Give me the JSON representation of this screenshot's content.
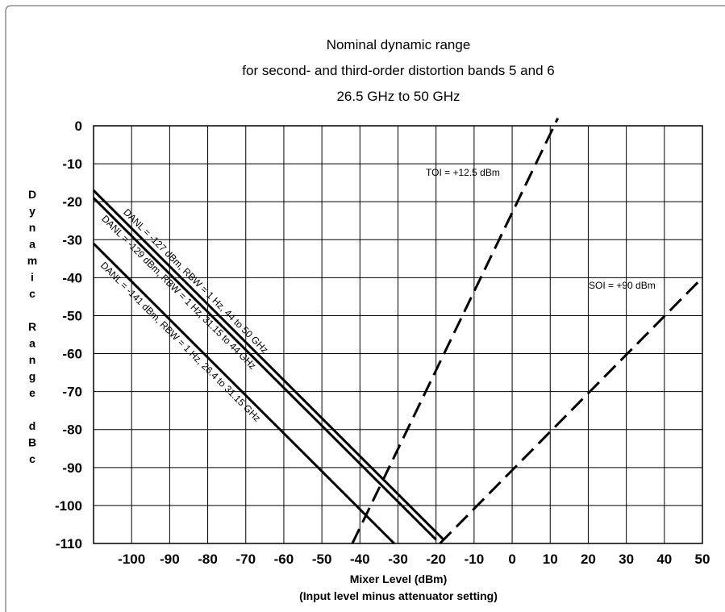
{
  "chart_data": {
    "type": "line",
    "title_lines": [
      "Nominal dynamic range",
      "for second- and third-order distortion bands 5 and 6",
      "26.5 GHz to 50 GHz"
    ],
    "xlabel": "Mixer Level (dBm)",
    "xlabel_sub": "(Input level minus attenuator setting)",
    "ylabel": "Dynamic Range dBc",
    "ylabel_chars": [
      "D",
      "y",
      "n",
      "a",
      "m",
      "i",
      "c",
      "",
      "R",
      "a",
      "n",
      "g",
      "e",
      "",
      "d",
      "B",
      "c"
    ],
    "xlim": [
      -110,
      50
    ],
    "ylim": [
      -110,
      0
    ],
    "x_ticks": [
      -100,
      -90,
      -80,
      -70,
      -60,
      -50,
      -40,
      -30,
      -20,
      -10,
      0,
      10,
      20,
      30,
      40,
      50
    ],
    "y_ticks": [
      0,
      -10,
      -20,
      -30,
      -40,
      -50,
      -60,
      -70,
      -80,
      -90,
      -100,
      -110
    ],
    "grid": true,
    "series": [
      {
        "label": "DANL = -127 dBm,  RBW = 1 Hz, 44 to 50 GHz",
        "style": "solid",
        "x": [
          -110,
          -18
        ],
        "y": [
          -17,
          -109
        ]
      },
      {
        "label": "DANL = -129 dBm,  RBW = 1 Hz, 31.15 to 44 GHz",
        "style": "solid",
        "x": [
          -110,
          -20
        ],
        "y": [
          -19,
          -109
        ]
      },
      {
        "label": "DANL = -141 dBm,  RBW = 1 Hz, 26.4 to 31.15 GHz",
        "style": "solid",
        "x": [
          -110,
          -31
        ],
        "y": [
          -31,
          -110
        ]
      },
      {
        "label": "TOI = +12.5 dBm",
        "style": "dashed",
        "x": [
          -42,
          12
        ],
        "y": [
          -110,
          2
        ]
      },
      {
        "label": "SOI = +90 dBm",
        "style": "dashed",
        "x": [
          -19,
          50
        ],
        "y": [
          -110,
          -40
        ]
      }
    ],
    "annotations": [
      {
        "text": "TOI = +12.5 dBm",
        "series": 3
      },
      {
        "text": "SOI = +90 dBm",
        "series": 4
      }
    ]
  }
}
